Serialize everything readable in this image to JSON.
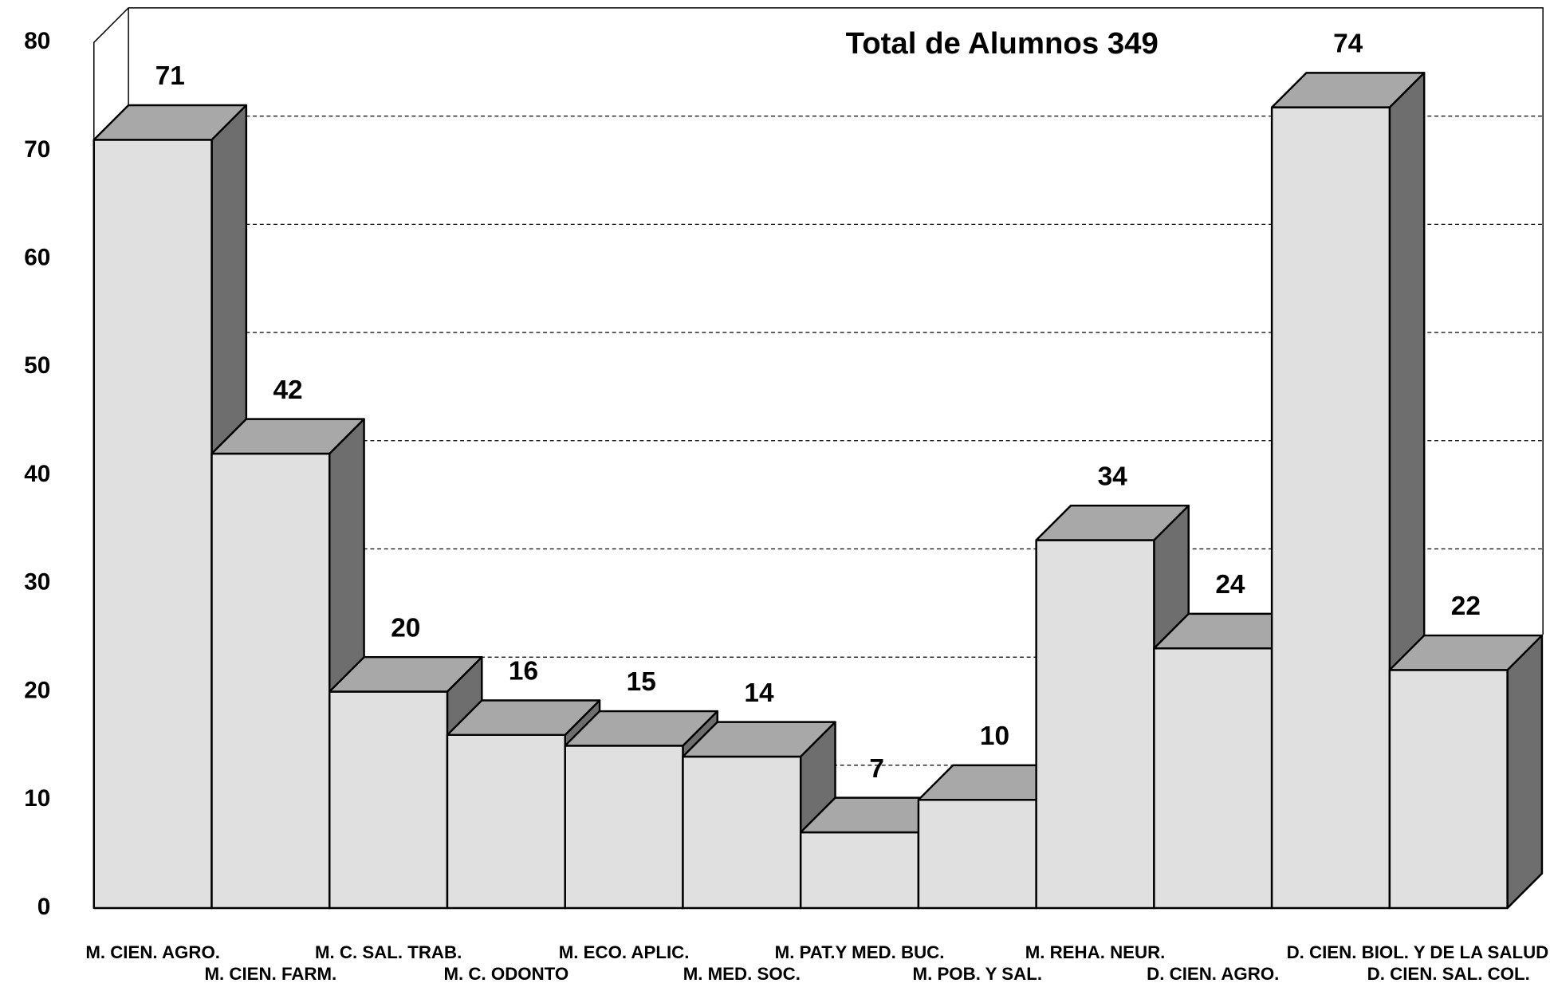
{
  "chart_data": {
    "type": "bar3d",
    "title": "Total de Alumnos 349",
    "categories": [
      "M. CIEN. AGRO.",
      "M. CIEN. FARM.",
      "M. C. SAL. TRAB.",
      "M. C. ODONTO",
      "M. ECO. APLIC.",
      "M. MED. SOC.",
      "M. PAT.Y MED. BUC.",
      "M. POB. Y SAL.",
      "M. REHA. NEUR.",
      "D. CIEN. AGRO.",
      "D. CIEN. BIOL. Y DE LA SALUD",
      "D. CIEN. SAL. COL."
    ],
    "values": [
      71,
      42,
      20,
      16,
      15,
      14,
      7,
      10,
      34,
      24,
      74,
      22
    ],
    "colors": {
      "front": "#e0e0e0",
      "top": "#a8a8a8",
      "side": "#6e6e6e"
    },
    "ylim": [
      0,
      80
    ],
    "yticks": [
      0,
      10,
      20,
      30,
      40,
      50,
      60,
      70,
      80
    ],
    "grid": true
  }
}
